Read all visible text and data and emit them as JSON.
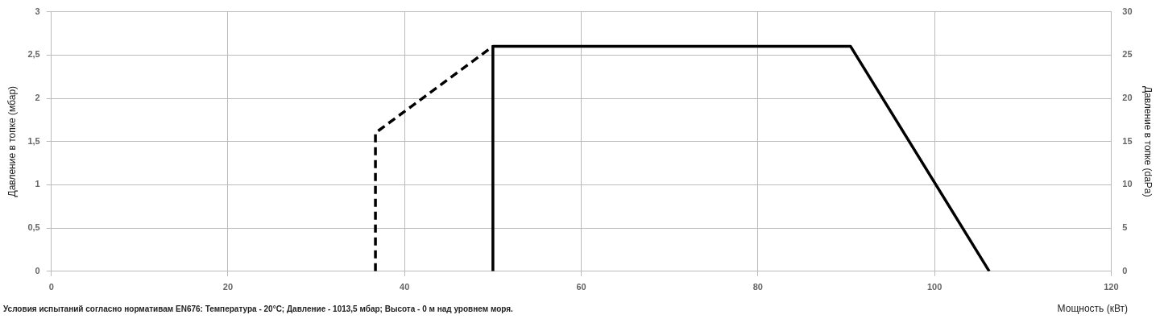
{
  "chart_data": {
    "type": "line",
    "xlabel": "Мощность (кВт)",
    "ylabel": "Давление в топке (мбар)",
    "y2label": "Давление в топке (daPa)",
    "annotations": [
      "Условия испытаний согласно нормативам EN676: Температура - 20°C; Давление - 1013,5 мбар; Высота - 0 м над уровнем моря."
    ],
    "series": [
      {
        "color": "#000000",
        "line_style": "dashed",
        "x": [
          36.7,
          36.7,
          50
        ],
        "values": [
          0,
          1.6,
          2.6
        ]
      },
      {
        "color": "#000000",
        "line_style": "solid",
        "x": [
          50,
          50,
          90.5,
          106.2
        ],
        "values": [
          0,
          2.6,
          2.6,
          0
        ]
      }
    ],
    "xlim": [
      0,
      120
    ],
    "xticks": [
      0,
      20,
      40,
      60,
      80,
      100,
      120
    ],
    "ylim": [
      0,
      3
    ],
    "yticks": [
      0,
      {
        "value": 0.5,
        "label": "0,5"
      },
      1,
      {
        "value": 1.5,
        "label": "1,5"
      },
      2,
      {
        "value": 2.5,
        "label": "2,5"
      },
      3
    ],
    "y2lim": [
      0,
      30
    ],
    "y2ticks": [
      0,
      5,
      10,
      15,
      20,
      25,
      30
    ],
    "grid": true,
    "legend": false,
    "marker": "none"
  }
}
